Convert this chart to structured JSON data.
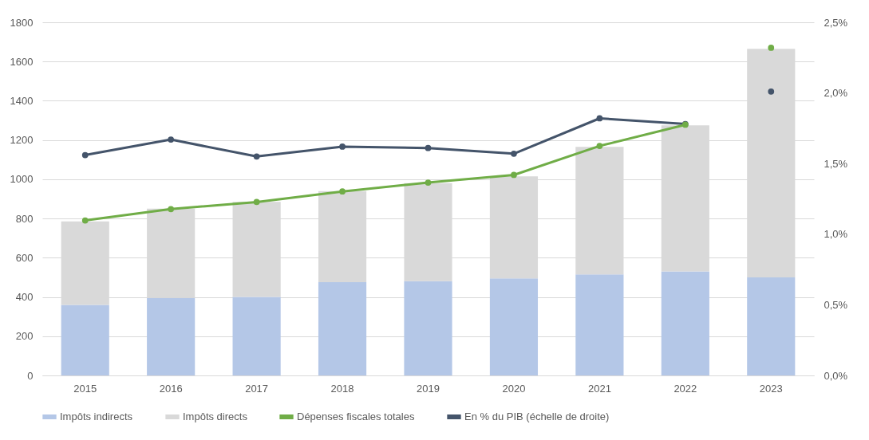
{
  "chart_data": {
    "type": "bar",
    "stacked": true,
    "categories": [
      "2015",
      "2016",
      "2017",
      "2018",
      "2019",
      "2020",
      "2021",
      "2022",
      "2023"
    ],
    "series": [
      {
        "name": "Impôts indirects",
        "color": "#b4c7e7",
        "values": [
          360,
          395,
          400,
          475,
          480,
          495,
          515,
          530,
          500
        ]
      },
      {
        "name": "Impôts directs",
        "color": "#d9d9d9",
        "values": [
          425,
          455,
          485,
          465,
          500,
          520,
          650,
          745,
          1165
        ]
      },
      {
        "name": "Dépenses fiscales totales",
        "type": "line",
        "color": "#70ad47",
        "values": [
          790,
          848,
          884,
          938,
          983,
          1022,
          1170,
          1278,
          null
        ]
      },
      {
        "name": "En % du PIB (échelle de droite)",
        "type": "line",
        "axis": "y2",
        "color": "#44546a",
        "values": [
          1.56,
          1.67,
          1.55,
          1.62,
          1.61,
          1.57,
          1.82,
          1.78,
          null
        ]
      },
      {
        "type": "scatter",
        "color": "#70ad47",
        "values": [
          null,
          null,
          null,
          null,
          null,
          null,
          null,
          null,
          1670
        ]
      },
      {
        "type": "scatter",
        "axis": "y2",
        "color": "#44546a",
        "values": [
          null,
          null,
          null,
          null,
          null,
          null,
          null,
          null,
          2.01
        ]
      }
    ],
    "ylim": [
      0,
      1800
    ],
    "yticks": [
      0,
      200,
      400,
      600,
      800,
      1000,
      1200,
      1400,
      1600,
      1800
    ],
    "y2lim": [
      0,
      2.5
    ],
    "y2ticks": [
      {
        "value": 0,
        "label": "0,0%"
      },
      {
        "value": 0.5,
        "label": "0,5%"
      },
      {
        "value": 1,
        "label": "1,0%"
      },
      {
        "value": 1.5,
        "label": "1,5%"
      },
      {
        "value": 2,
        "label": "2,0%"
      },
      {
        "value": 2.5,
        "label": "2,5%"
      }
    ],
    "grid": "y",
    "legend": "bottom",
    "marker": "circle",
    "line_style": "solid"
  }
}
